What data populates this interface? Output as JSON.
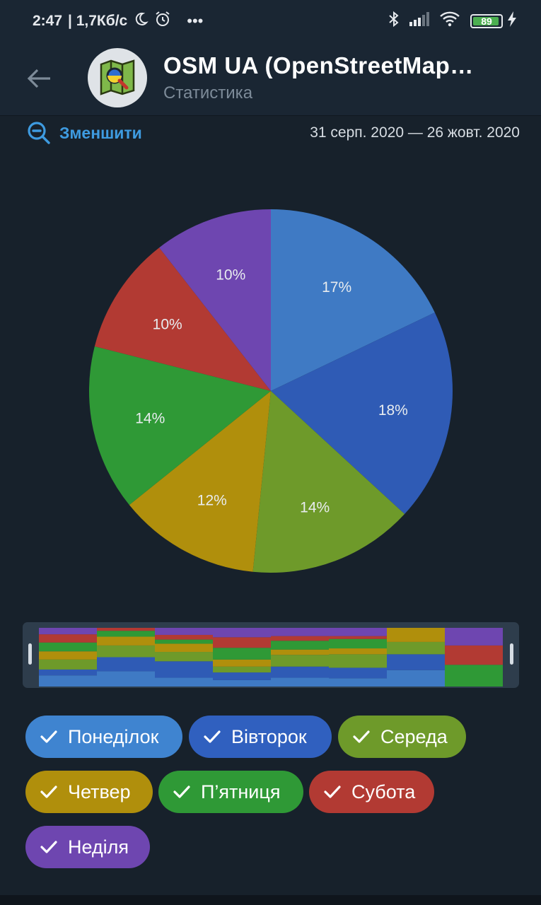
{
  "status_bar": {
    "time": "2:47",
    "speed": "| 1,7Кб/с",
    "moon_icon": "moon-icon",
    "alarm_icon": "alarm-icon",
    "more": "•••",
    "battery": "89"
  },
  "header": {
    "title": "OSM UA (OpenStreetMap…",
    "subtitle": "Статистика"
  },
  "toolbar": {
    "zoom_out_label": "Зменшити",
    "date_range": "31 серп. 2020 — 26 жовт. 2020"
  },
  "chart_data": {
    "type": "pie",
    "slices": [
      {
        "name": "Понеділок",
        "value": 17,
        "label": "17%",
        "color": "#3f7ac4"
      },
      {
        "name": "Вівторок",
        "value": 18,
        "label": "18%",
        "color": "#2f5bb5"
      },
      {
        "name": "Середа",
        "value": 14,
        "label": "14%",
        "color": "#6e9a2a"
      },
      {
        "name": "Четвер",
        "value": 12,
        "label": "12%",
        "color": "#b08f0c"
      },
      {
        "name": "П’ятниця",
        "value": 14,
        "label": "14%",
        "color": "#2f9936"
      },
      {
        "name": "Субота",
        "value": 10,
        "label": "10%",
        "color": "#b23a33"
      },
      {
        "name": "Неділя",
        "value": 10,
        "label": "10%",
        "color": "#6e46b0"
      }
    ]
  },
  "navigator": {
    "columns": [
      [
        0.19,
        0.1,
        0.17,
        0.14,
        0.15,
        0.14,
        0.11
      ],
      [
        0.26,
        0.24,
        0.2,
        0.15,
        0.1,
        0.05,
        0.0
      ],
      [
        0.15,
        0.28,
        0.16,
        0.14,
        0.07,
        0.08,
        0.12
      ],
      [
        0.11,
        0.13,
        0.1,
        0.12,
        0.2,
        0.18,
        0.16
      ],
      [
        0.15,
        0.19,
        0.2,
        0.09,
        0.15,
        0.08,
        0.14
      ],
      [
        0.14,
        0.18,
        0.23,
        0.1,
        0.16,
        0.05,
        0.14
      ],
      [
        0.28,
        0.27,
        0.21,
        0.24,
        0.0,
        0.0,
        0.0
      ],
      [
        0.0,
        0.0,
        0.0,
        0.0,
        0.37,
        0.33,
        0.3
      ]
    ]
  },
  "legend": [
    {
      "label": "Понеділок",
      "color": "#3f84d0"
    },
    {
      "label": "Вівторок",
      "color": "#3060bf"
    },
    {
      "label": "Середа",
      "color": "#6e9a2a"
    },
    {
      "label": "Четвер",
      "color": "#b08f0c"
    },
    {
      "label": "П’ятниця",
      "color": "#2f9936"
    },
    {
      "label": "Субота",
      "color": "#b23a33"
    },
    {
      "label": "Неділя",
      "color": "#6e46b0"
    }
  ]
}
